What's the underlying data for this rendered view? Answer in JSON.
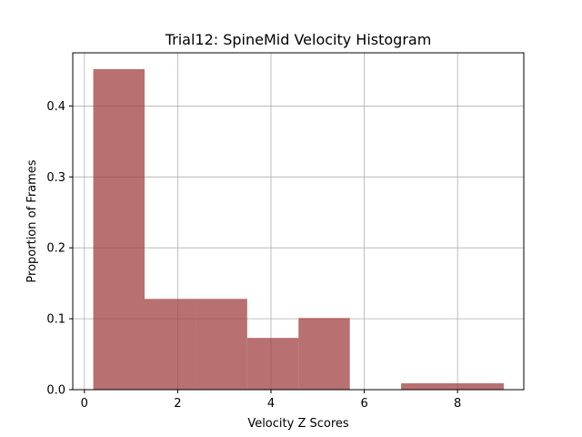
{
  "chart_data": {
    "type": "histogram",
    "title": "Trial12: SpineMid Velocity Histogram",
    "xlabel": "Velocity Z Scores",
    "ylabel": "Proportion of Frames",
    "xlim": [
      -0.25,
      9.42
    ],
    "ylim": [
      0,
      0.475
    ],
    "x_ticks": [
      0,
      2,
      4,
      6,
      8
    ],
    "y_ticks": [
      0.0,
      0.1,
      0.2,
      0.3,
      0.4
    ],
    "x_tick_labels": [
      "0",
      "2",
      "4",
      "6",
      "8"
    ],
    "y_tick_labels": [
      "0.0",
      "0.1",
      "0.2",
      "0.3",
      "0.4"
    ],
    "grid": true,
    "bar_color": "#a04040",
    "bins": [
      {
        "x0": 0.19,
        "x1": 1.29,
        "value": 0.452
      },
      {
        "x0": 1.29,
        "x1": 2.39,
        "value": 0.128
      },
      {
        "x0": 2.39,
        "x1": 3.49,
        "value": 0.128
      },
      {
        "x0": 3.49,
        "x1": 4.59,
        "value": 0.073
      },
      {
        "x0": 4.59,
        "x1": 5.69,
        "value": 0.101
      },
      {
        "x0": 5.69,
        "x1": 6.79,
        "value": 0.0
      },
      {
        "x0": 6.79,
        "x1": 7.89,
        "value": 0.009
      },
      {
        "x0": 7.89,
        "x1": 8.99,
        "value": 0.009
      }
    ]
  }
}
